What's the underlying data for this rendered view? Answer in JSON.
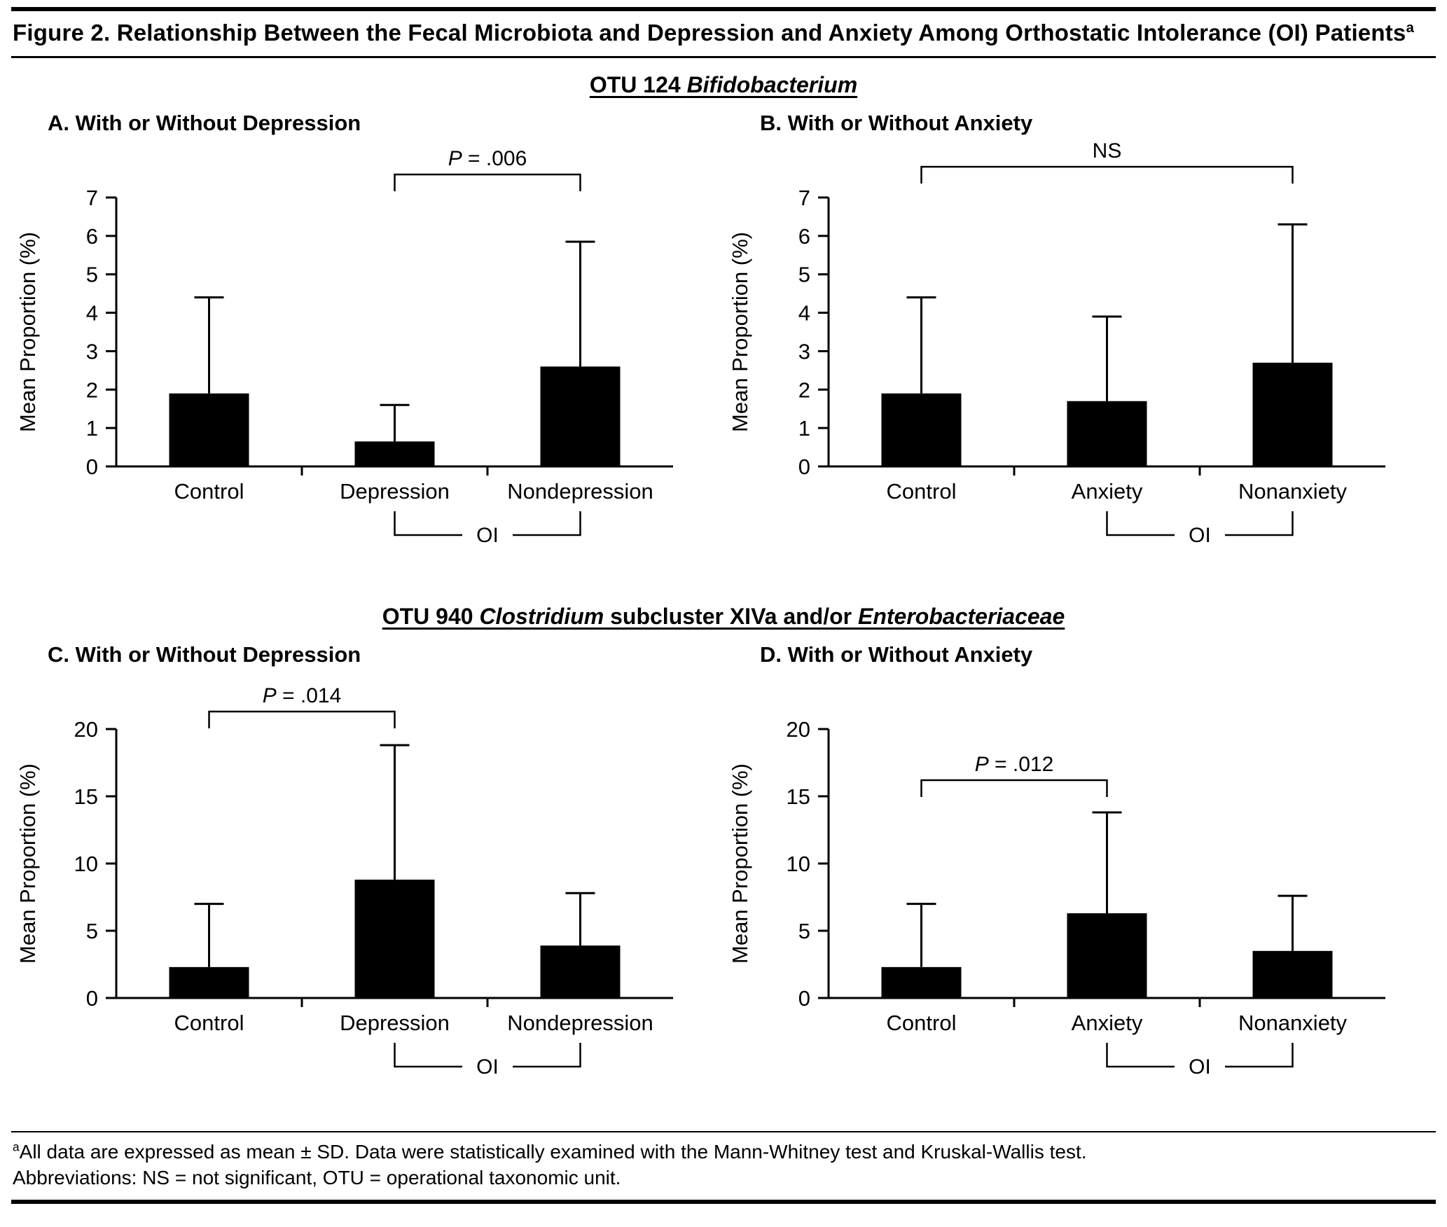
{
  "figure": {
    "title_parts": [
      {
        "text": "Figure 2. Relationship Between the Fecal Microbiota and Depression and Anxiety Among Orthostatic Intolerance (OI) Patients"
      },
      {
        "text": "a",
        "sup": true
      }
    ],
    "section1_parts": [
      {
        "text": "OTU 124 "
      },
      {
        "text": "Bifidobacterium",
        "italic": true
      }
    ],
    "section2_parts": [
      {
        "text": "OTU 940 "
      },
      {
        "text": "Clostridium",
        "italic": true
      },
      {
        "text": " subcluster XIVa and/or "
      },
      {
        "text": "Enterobacteriaceae",
        "italic": true
      }
    ],
    "footnote1_parts": [
      {
        "text": "a",
        "sup": true
      },
      {
        "text": "All data are expressed as mean ± SD. Data were statistically examined with the Mann-Whitney test and Kruskal-Wallis test."
      }
    ],
    "footnote2": "Abbreviations: NS = not significant, OTU = operational taxonomic unit."
  },
  "chart_data": [
    {
      "id": "A",
      "type": "bar",
      "panel_label": "A. With or Without Depression",
      "title": "OTU 124 Bifidobacterium - With or Without Depression",
      "ylabel": "Mean Proportion (%)",
      "xlabel": "",
      "ylim": [
        0,
        7
      ],
      "yticks": [
        0,
        1,
        2,
        3,
        4,
        5,
        6,
        7
      ],
      "grid": false,
      "categories": [
        "Control",
        "Depression",
        "Nondepression"
      ],
      "values": [
        1.9,
        0.65,
        2.6
      ],
      "sd_top": [
        4.4,
        1.6,
        5.85
      ],
      "bar_color": "#000000",
      "significance": {
        "from": 1,
        "to": 2,
        "label": "P = .006",
        "y": 7.6
      },
      "oi_bracket": {
        "from": 1,
        "to": 2,
        "label": "OI"
      }
    },
    {
      "id": "B",
      "type": "bar",
      "panel_label": "B. With or Without Anxiety",
      "title": "OTU 124 Bifidobacterium - With or Without Anxiety",
      "ylabel": "Mean Proportion (%)",
      "xlabel": "",
      "ylim": [
        0,
        7
      ],
      "yticks": [
        0,
        1,
        2,
        3,
        4,
        5,
        6,
        7
      ],
      "grid": false,
      "categories": [
        "Control",
        "Anxiety",
        "Nonanxiety"
      ],
      "values": [
        1.9,
        1.7,
        2.7
      ],
      "sd_top": [
        4.4,
        3.9,
        6.3
      ],
      "bar_color": "#000000",
      "significance": {
        "from": 0,
        "to": 2,
        "label": "NS",
        "y": 7.8
      },
      "oi_bracket": {
        "from": 1,
        "to": 2,
        "label": "OI"
      }
    },
    {
      "id": "C",
      "type": "bar",
      "panel_label": "C. With or Without Depression",
      "title": "OTU 940 Clostridium subcluster XIVa and/or Enterobacteriaceae - With or Without Depression",
      "ylabel": "Mean Proportion (%)",
      "xlabel": "",
      "ylim": [
        0,
        20
      ],
      "yticks": [
        0,
        5,
        10,
        15,
        20
      ],
      "grid": false,
      "categories": [
        "Control",
        "Depression",
        "Nondepression"
      ],
      "values": [
        2.3,
        8.8,
        3.9
      ],
      "sd_top": [
        7.0,
        18.8,
        7.8
      ],
      "bar_color": "#000000",
      "significance": {
        "from": 0,
        "to": 1,
        "label": "P = .014",
        "y": 21.3
      },
      "oi_bracket": {
        "from": 1,
        "to": 2,
        "label": "OI"
      }
    },
    {
      "id": "D",
      "type": "bar",
      "panel_label": "D. With or Without Anxiety",
      "title": "OTU 940 Clostridium subcluster XIVa and/or Enterobacteriaceae - With or Without Anxiety",
      "ylabel": "Mean Proportion (%)",
      "xlabel": "",
      "ylim": [
        0,
        20
      ],
      "yticks": [
        0,
        5,
        10,
        15,
        20
      ],
      "grid": false,
      "categories": [
        "Control",
        "Anxiety",
        "Nonanxiety"
      ],
      "values": [
        2.3,
        6.3,
        3.5
      ],
      "sd_top": [
        7.0,
        13.8,
        7.6
      ],
      "bar_color": "#000000",
      "significance": {
        "from": 0,
        "to": 1,
        "label": "P = .012",
        "y": 16.2
      },
      "oi_bracket": {
        "from": 1,
        "to": 2,
        "label": "OI"
      }
    }
  ]
}
